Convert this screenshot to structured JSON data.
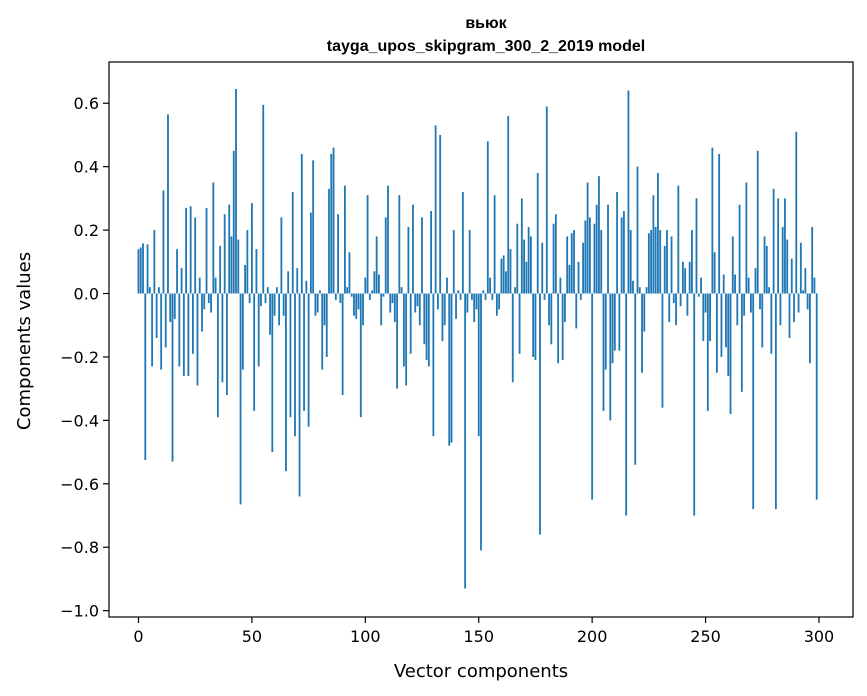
{
  "chart_data": {
    "type": "bar",
    "title": "вьюк",
    "subtitle": "tayga_upos_skipgram_300_2_2019 model",
    "xlabel": "Vector components",
    "ylabel": "Components values",
    "xlim": [
      -13,
      315
    ],
    "ylim": [
      -1.02,
      0.73
    ],
    "xticks": [
      0,
      50,
      100,
      150,
      200,
      250,
      300
    ],
    "xtick_labels": [
      "0",
      "50",
      "100",
      "150",
      "200",
      "250",
      "300"
    ],
    "yticks": [
      0.6,
      0.4,
      0.2,
      0.0,
      -0.2,
      -0.4,
      -0.6,
      -0.8,
      -1.0
    ],
    "ytick_labels": [
      "0.6",
      "0.4",
      "0.2",
      "0.0",
      "−0.2",
      "−0.4",
      "−0.6",
      "−0.8",
      "−1.0"
    ],
    "grid": false,
    "color": "#1f77b4",
    "values": [
      0.14,
      0.145,
      0.158,
      -0.525,
      0.155,
      0.02,
      -0.23,
      0.2,
      -0.14,
      0.02,
      -0.24,
      0.325,
      -0.17,
      0.565,
      -0.09,
      -0.53,
      -0.08,
      0.14,
      -0.23,
      0.08,
      -0.26,
      0.27,
      -0.26,
      0.275,
      -0.19,
      0.24,
      -0.29,
      0.05,
      -0.12,
      -0.05,
      0.27,
      -0.03,
      -0.06,
      0.35,
      0.05,
      -0.39,
      0.15,
      -0.28,
      0.25,
      -0.32,
      0.28,
      0.18,
      0.45,
      0.645,
      0.17,
      -0.665,
      -0.24,
      0.09,
      0.2,
      -0.03,
      0.285,
      -0.37,
      0.14,
      -0.23,
      -0.04,
      0.595,
      -0.03,
      0.02,
      -0.13,
      -0.5,
      -0.07,
      0.02,
      -0.1,
      0.24,
      -0.07,
      -0.56,
      0.07,
      -0.39,
      0.32,
      -0.45,
      0.08,
      -0.64,
      0.44,
      -0.37,
      0.04,
      -0.42,
      0.255,
      0.42,
      -0.07,
      -0.06,
      0.01,
      -0.24,
      -0.1,
      -0.2,
      0.33,
      0.44,
      0.46,
      -0.02,
      0.25,
      -0.03,
      -0.32,
      0.34,
      0.02,
      0.13,
      -0.01,
      -0.07,
      -0.08,
      -0.05,
      -0.39,
      -0.1,
      0.05,
      0.31,
      -0.02,
      0.01,
      0.07,
      0.18,
      0.06,
      -0.1,
      -0.01,
      0.24,
      0.34,
      -0.06,
      -0.03,
      -0.09,
      -0.3,
      0.31,
      0.02,
      -0.23,
      -0.29,
      0.21,
      -0.19,
      0.28,
      -0.06,
      -0.04,
      -0.1,
      0.24,
      -0.16,
      -0.21,
      -0.23,
      0.26,
      -0.45,
      0.53,
      -0.05,
      0.5,
      -0.15,
      -0.1,
      0.05,
      -0.48,
      -0.47,
      0.2,
      -0.08,
      0.01,
      -0.02,
      0.32,
      -0.93,
      -0.06,
      0.2,
      -0.02,
      -0.09,
      -0.05,
      -0.45,
      -0.81,
      0.01,
      -0.02,
      0.48,
      0.05,
      -0.02,
      0.31,
      -0.07,
      -0.05,
      0.11,
      0.12,
      0.07,
      0.56,
      0.14,
      -0.28,
      0.02,
      0.22,
      -0.19,
      0.3,
      0.17,
      0.1,
      0.21,
      0.18,
      -0.2,
      -0.21,
      0.38,
      -0.76,
      0.16,
      -0.02,
      0.59,
      -0.1,
      -0.16,
      0.22,
      0.25,
      -0.22,
      0.05,
      -0.21,
      -0.09,
      0.18,
      0.09,
      0.19,
      0.2,
      -0.11,
      0.1,
      -0.02,
      0.16,
      0.23,
      0.35,
      0.24,
      -0.65,
      0.22,
      0.28,
      0.37,
      0.2,
      -0.37,
      -0.24,
      0.28,
      -0.4,
      -0.22,
      -0.18,
      0.32,
      -0.18,
      0.24,
      0.26,
      -0.7,
      0.64,
      0.2,
      0.04,
      -0.54,
      0.4,
      0.02,
      -0.25,
      -0.12,
      0.02,
      0.19,
      0.2,
      0.31,
      0.21,
      0.38,
      0.2,
      -0.36,
      0.15,
      0.2,
      -0.09,
      0.18,
      -0.03,
      -0.1,
      0.34,
      -0.04,
      0.1,
      0.08,
      -0.07,
      0.1,
      0.2,
      -0.7,
      0.3,
      -0.01,
      0.05,
      -0.15,
      -0.06,
      -0.37,
      -0.15,
      0.46,
      0.13,
      -0.25,
      0.44,
      -0.2,
      0.06,
      -0.17,
      -0.26,
      -0.38,
      0.18,
      0.06,
      -0.1,
      0.28,
      -0.31,
      -0.07,
      0.35,
      0.05,
      -0.06,
      -0.68,
      0.08,
      0.45,
      -0.05,
      -0.17,
      0.18,
      0.15,
      0.02,
      -0.19,
      0.33,
      -0.68,
      0.3,
      -0.1,
      0.21,
      0.3,
      0.17,
      -0.14,
      0.11,
      -0.09,
      0.51,
      -0.06,
      0.16,
      0.01,
      0.08,
      -0.05,
      -0.22,
      0.21,
      0.05,
      -0.65
    ]
  }
}
